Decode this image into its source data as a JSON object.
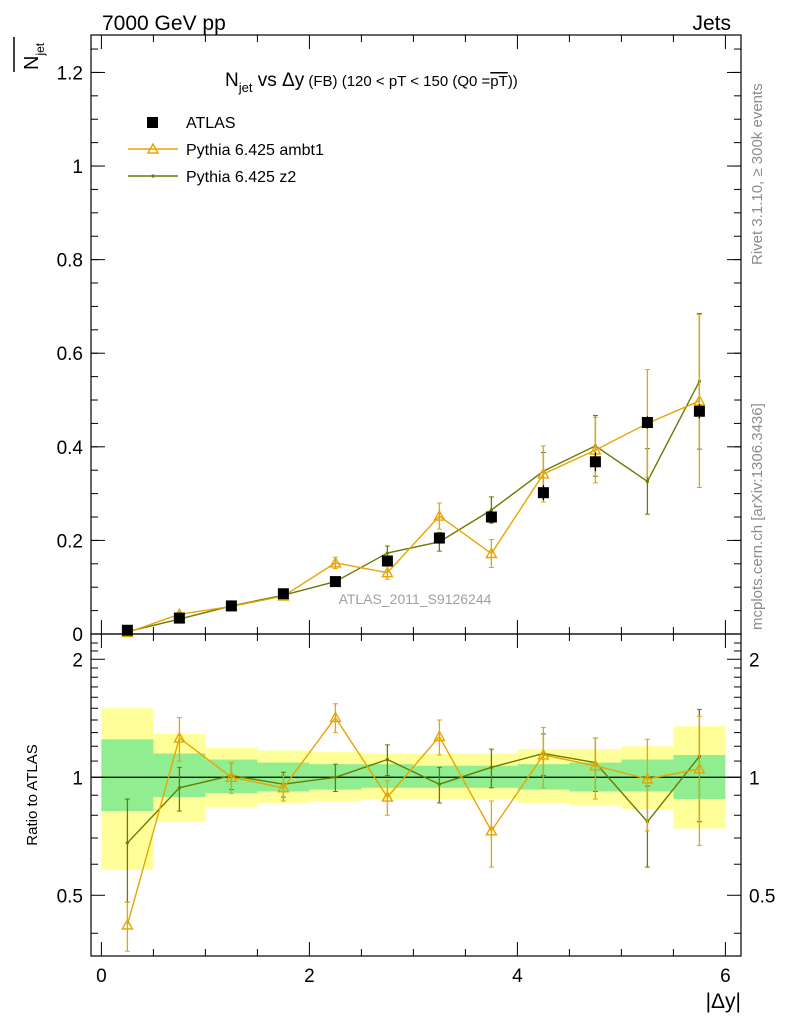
{
  "header": {
    "left": "7000 GeV pp",
    "right": "Jets",
    "side_top": "Rivet 3.1.10, ≥ 300k events",
    "side_bottom": "mcplots.cern.ch [arXiv:1306.3436]"
  },
  "chart_data": [
    {
      "type": "scatter",
      "title_main": "N",
      "title_sub": "jet",
      "title_mid": " vs Δy",
      "title_small": " (FB)",
      "title_cut": " (120 < pT < 150 (Q0 =",
      "title_over": "pT",
      "title_end": "))",
      "ylabel": "N",
      "ylabel_sub": "jet",
      "xlim": [
        -0.1,
        6.15
      ],
      "ylim": [
        0,
        1.28
      ],
      "x_ticks": [
        0,
        2,
        4,
        6
      ],
      "x_tick_labels": [
        "0",
        "2",
        "4",
        "6"
      ],
      "y_ticks": [
        0,
        0.2,
        0.4,
        0.6,
        0.8,
        1.0,
        1.2
      ],
      "y_tick_labels": [
        "0",
        "0.2",
        "0.4",
        "0.6",
        "0.8",
        "1",
        "1.2"
      ],
      "watermark": "ATLAS_2011_S9126244",
      "legend_position": "top-left",
      "x": [
        0.25,
        0.75,
        1.25,
        1.75,
        2.25,
        2.75,
        3.25,
        3.75,
        4.25,
        4.75,
        5.25,
        5.75
      ],
      "series": [
        {
          "name": "ATLAS",
          "color": "#000000",
          "marker": "square",
          "values": [
            0.008,
            0.034,
            0.06,
            0.086,
            0.112,
            0.156,
            0.205,
            0.25,
            0.302,
            0.368,
            0.452,
            0.476
          ],
          "errors": [
            0.002,
            0.003,
            0.004,
            0.005,
            0.006,
            0.008,
            0.011,
            0.013,
            0.016,
            0.02,
            0.013,
            0.015
          ]
        },
        {
          "name": "Pythia 6.425 ambt1",
          "color": "#e8a400",
          "marker": "triangle",
          "values": [
            0.003,
            0.042,
            0.059,
            0.081,
            0.152,
            0.131,
            0.252,
            0.172,
            0.342,
            0.393,
            0.45,
            0.498
          ],
          "errors": [
            0.0015,
            0.005,
            0.005,
            0.006,
            0.012,
            0.014,
            0.028,
            0.03,
            0.06,
            0.07,
            0.115,
            0.185
          ]
        },
        {
          "name": "Pythia 6.425 z2",
          "color": "#6b7a00",
          "marker": "dot",
          "values": [
            0.005,
            0.032,
            0.06,
            0.083,
            0.112,
            0.173,
            0.197,
            0.265,
            0.348,
            0.402,
            0.326,
            0.54
          ],
          "errors": [
            0.0015,
            0.004,
            0.004,
            0.005,
            0.008,
            0.015,
            0.02,
            0.028,
            0.04,
            0.065,
            0.07,
            0.145
          ]
        }
      ]
    },
    {
      "type": "scatter",
      "ylabel": "Ratio to ATLAS",
      "xlabel": "|Δy|",
      "xlim": [
        -0.1,
        6.15
      ],
      "ylim": [
        0.35,
        2.32
      ],
      "log_y": true,
      "y_ticks": [
        0.5,
        1,
        2
      ],
      "y_tick_labels": [
        "0.5",
        "1",
        "2"
      ],
      "x_ticks": [
        0,
        2,
        4,
        6
      ],
      "x_tick_labels": [
        "0",
        "2",
        "4",
        "6"
      ],
      "band_edges": [
        0,
        0.5,
        1.0,
        1.5,
        2.0,
        2.5,
        3.0,
        3.5,
        4.0,
        4.5,
        5.0,
        5.5,
        6.0
      ],
      "band_inner": [
        [
          0.82,
          1.25
        ],
        [
          0.89,
          1.15
        ],
        [
          0.91,
          1.11
        ],
        [
          0.92,
          1.09
        ],
        [
          0.93,
          1.08
        ],
        [
          0.94,
          1.08
        ],
        [
          0.94,
          1.07
        ],
        [
          0.94,
          1.07
        ],
        [
          0.93,
          1.08
        ],
        [
          0.92,
          1.09
        ],
        [
          0.92,
          1.11
        ],
        [
          0.88,
          1.14
        ]
      ],
      "band_outer": [
        [
          0.58,
          1.5
        ],
        [
          0.77,
          1.29
        ],
        [
          0.84,
          1.19
        ],
        [
          0.86,
          1.17
        ],
        [
          0.87,
          1.16
        ],
        [
          0.88,
          1.15
        ],
        [
          0.88,
          1.15
        ],
        [
          0.88,
          1.15
        ],
        [
          0.86,
          1.18
        ],
        [
          0.85,
          1.18
        ],
        [
          0.83,
          1.2
        ],
        [
          0.74,
          1.35
        ]
      ],
      "series": [
        {
          "name": "Pythia 6.425 ambt1",
          "color": "#e8a400",
          "values": [
            0.42,
            1.26,
            1.0,
            0.94,
            1.42,
            0.89,
            1.27,
            0.73,
            1.14,
            1.07,
            0.99,
            1.05
          ],
          "errors": [
            0.06,
            0.16,
            0.09,
            0.07,
            0.12,
            0.09,
            0.13,
            0.14,
            0.2,
            0.19,
            0.26,
            0.38
          ]
        },
        {
          "name": "Pythia 6.425 z2",
          "color": "#6b7a00",
          "values": [
            0.68,
            0.94,
            1.01,
            0.96,
            1.0,
            1.11,
            0.96,
            1.06,
            1.15,
            1.09,
            0.77,
            1.13
          ],
          "errors": [
            0.2,
            0.12,
            0.08,
            0.07,
            0.08,
            0.1,
            0.1,
            0.12,
            0.14,
            0.17,
            0.18,
            0.36
          ]
        }
      ]
    }
  ]
}
